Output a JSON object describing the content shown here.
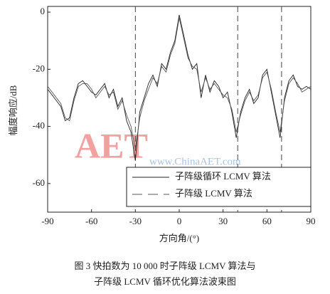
{
  "chart_data": {
    "type": "line",
    "x": [
      -90,
      -87,
      -84,
      -81,
      -78,
      -75,
      -72,
      -69,
      -66,
      -63,
      -60,
      -57,
      -54,
      -51,
      -48,
      -45,
      -42,
      -39,
      -36,
      -33,
      -30,
      -27,
      -24,
      -21,
      -18,
      -15,
      -12,
      -9,
      -6,
      -3,
      0,
      3,
      6,
      9,
      12,
      15,
      18,
      21,
      24,
      27,
      30,
      33,
      36,
      39,
      42,
      45,
      48,
      51,
      54,
      57,
      60,
      63,
      66,
      69,
      72,
      75,
      78,
      81,
      84,
      87,
      90
    ],
    "series": [
      {
        "name": "子阵级循环 LCMV 算法",
        "color": "#222222",
        "dash": false,
        "values": [
          -27,
          -29,
          -31,
          -33,
          -38,
          -37,
          -30,
          -25,
          -24,
          -26,
          -28,
          -29,
          -27,
          -25,
          -30,
          -27,
          -33,
          -30,
          -38,
          -42,
          -52,
          -35,
          -30,
          -25,
          -22,
          -26,
          -18,
          -20,
          -14,
          -10,
          -1,
          -8,
          -15,
          -20,
          -18,
          -30,
          -22,
          -28,
          -24,
          -26,
          -30,
          -28,
          -35,
          -44,
          -35,
          -30,
          -27,
          -32,
          -30,
          -22,
          -20,
          -28,
          -36,
          -44,
          -30,
          -24,
          -22,
          -26,
          -27,
          -26,
          -27
        ]
      },
      {
        "name": "子阵级 LCMV 算法",
        "color": "#555555",
        "dash": true,
        "values": [
          -26,
          -28,
          -30,
          -32,
          -37,
          -38,
          -31,
          -26,
          -25,
          -25,
          -27,
          -30,
          -28,
          -26,
          -29,
          -28,
          -34,
          -31,
          -36,
          -40,
          -48,
          -37,
          -31,
          -27,
          -23,
          -25,
          -19,
          -21,
          -15,
          -11,
          -2,
          -9,
          -16,
          -19,
          -20,
          -28,
          -23,
          -27,
          -25,
          -27,
          -29,
          -30,
          -34,
          -42,
          -36,
          -31,
          -28,
          -31,
          -29,
          -23,
          -21,
          -27,
          -35,
          -42,
          -31,
          -25,
          -23,
          -25,
          -28,
          -27,
          -26
        ]
      }
    ],
    "reference_lines": [
      -30,
      40,
      70
    ],
    "xlim": [
      -90,
      90
    ],
    "xticks": [
      -90,
      -60,
      -30,
      0,
      30,
      60,
      90
    ],
    "ylim": [
      -70,
      2
    ],
    "yticks": [
      0,
      -20,
      -40,
      -60
    ],
    "xlabel": "方向角/(°)",
    "ylabel": "幅度响应/dB",
    "caption": [
      "图 3   快拍数为 10 000 时子阵级 LCMV 算法与",
      "子阵级 LCMV 循环优化算法波束图"
    ],
    "watermark": [
      "AET",
      "www.ChinaAET.com"
    ]
  }
}
